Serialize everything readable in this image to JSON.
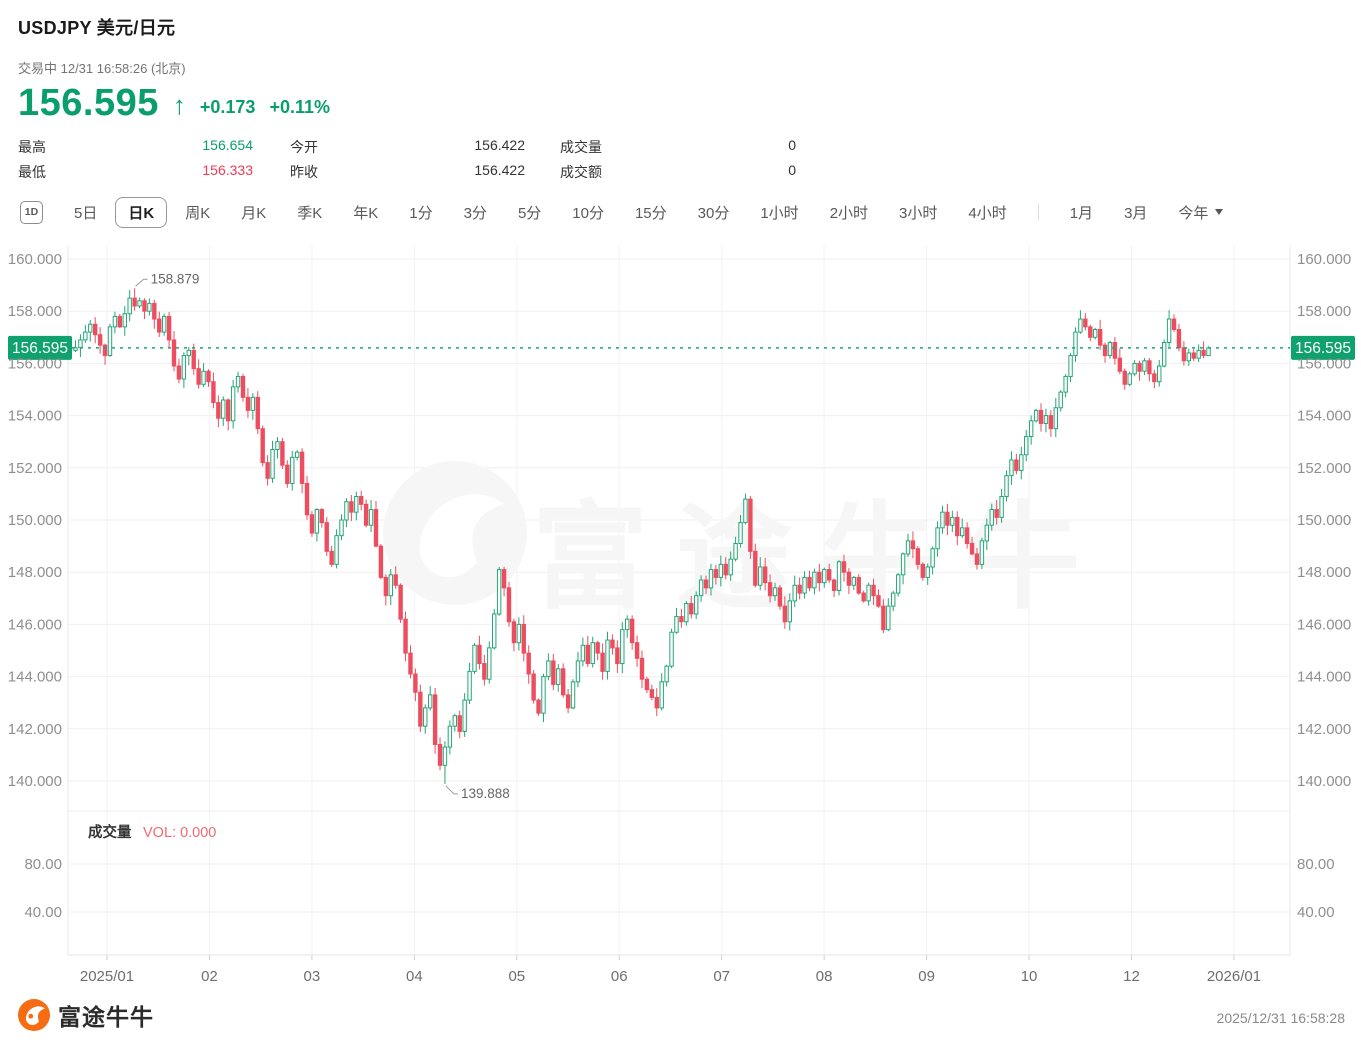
{
  "header": {
    "title": "USDJPY  美元/日元",
    "status": "交易中 12/31 16:58:26 (北京)",
    "price": "156.595",
    "arrow": "↑",
    "change": "+0.173",
    "change_pct": "+0.11%",
    "stats": [
      {
        "label": "最高",
        "value": "156.654",
        "color": "green"
      },
      {
        "label": "今开",
        "value": "156.422",
        "color": "normal"
      },
      {
        "label": "成交量",
        "value": "0",
        "color": "normal"
      },
      {
        "label": "最低",
        "value": "156.333",
        "color": "red"
      },
      {
        "label": "昨收",
        "value": "156.422",
        "color": "normal"
      },
      {
        "label": "成交额",
        "value": "0",
        "color": "normal"
      }
    ]
  },
  "toolbar": {
    "chart_type_icon": "1D",
    "tabs": [
      "5日",
      "日K",
      "周K",
      "月K",
      "季K",
      "年K",
      "1分",
      "3分",
      "5分",
      "10分",
      "15分",
      "30分",
      "1小时",
      "2小时",
      "3小时",
      "4小时"
    ],
    "tabs_right": [
      "1月",
      "3月"
    ],
    "dropdown_label": "今年",
    "selected": "日K"
  },
  "chart_data": {
    "type": "candlestick",
    "symbol": "USDJPY",
    "period": "daily",
    "y_ticks": [
      160,
      158,
      156,
      154,
      152,
      150,
      148,
      146,
      144,
      142,
      140
    ],
    "y_tick_labels": [
      "160.000",
      "158.000",
      "156.000",
      "154.000",
      "152.000",
      "150.000",
      "148.000",
      "146.000",
      "144.000",
      "142.000",
      "140.000"
    ],
    "x_labels": [
      "2025/01",
      "02",
      "03",
      "04",
      "05",
      "06",
      "07",
      "08",
      "09",
      "10",
      "12",
      "2026/01"
    ],
    "current_price": 156.595,
    "current_price_label": "156.595",
    "high_annotation": {
      "label": "158.879",
      "value": 158.879
    },
    "low_annotation": {
      "label": "139.888",
      "value": 139.888
    },
    "high_index": 12,
    "low_index": 75,
    "day_open": 156.422,
    "prev_close": 156.422,
    "day_high": 156.654,
    "day_low": 156.333,
    "closes": [
      156.6,
      156.9,
      157.2,
      157.5,
      157.1,
      156.7,
      156.3,
      157.4,
      157.8,
      157.4,
      157.9,
      158.5,
      158.2,
      158.4,
      158.0,
      158.3,
      157.7,
      157.2,
      157.8,
      156.9,
      155.9,
      155.4,
      156.3,
      156.5,
      155.8,
      155.2,
      155.7,
      155.3,
      154.5,
      153.9,
      154.6,
      153.8,
      155.1,
      155.5,
      154.7,
      154.2,
      154.7,
      153.5,
      152.2,
      151.6,
      152.7,
      153.0,
      152.1,
      151.4,
      152.4,
      152.6,
      151.4,
      150.2,
      149.5,
      150.4,
      149.9,
      148.8,
      148.3,
      149.4,
      150.0,
      150.7,
      150.3,
      150.9,
      150.6,
      149.8,
      150.4,
      149.0,
      147.8,
      147.1,
      147.9,
      147.5,
      146.2,
      144.9,
      144.1,
      143.4,
      142.1,
      142.8,
      143.3,
      141.4,
      140.6,
      141.3,
      142.1,
      142.5,
      141.9,
      143.1,
      144.2,
      145.2,
      144.5,
      143.9,
      145.1,
      146.4,
      148.1,
      147.4,
      146.1,
      145.3,
      146.0,
      144.9,
      144.1,
      143.1,
      142.6,
      144.0,
      144.6,
      143.7,
      144.3,
      143.3,
      142.8,
      143.8,
      144.6,
      145.2,
      144.5,
      145.3,
      144.9,
      144.2,
      145.4,
      145.1,
      144.5,
      145.8,
      146.2,
      145.3,
      144.7,
      143.9,
      143.5,
      143.2,
      142.8,
      143.8,
      144.4,
      145.7,
      146.3,
      146.1,
      146.8,
      146.4,
      147.1,
      147.7,
      147.4,
      148.1,
      147.8,
      148.3,
      147.9,
      148.5,
      149.1,
      149.9,
      150.8,
      148.8,
      147.5,
      148.2,
      147.6,
      147.1,
      147.4,
      146.7,
      146.1,
      146.9,
      147.5,
      147.2,
      147.8,
      147.4,
      148.0,
      147.6,
      148.1,
      147.7,
      147.3,
      148.4,
      148.0,
      147.5,
      147.8,
      147.2,
      146.9,
      147.5,
      147.1,
      146.7,
      145.8,
      146.7,
      147.2,
      147.9,
      148.7,
      149.2,
      148.9,
      148.3,
      147.8,
      148.2,
      148.9,
      149.7,
      150.3,
      149.8,
      150.1,
      149.4,
      149.7,
      149.1,
      148.7,
      148.3,
      149.2,
      149.8,
      150.4,
      150.1,
      150.9,
      151.7,
      152.3,
      151.9,
      152.5,
      153.2,
      153.8,
      154.2,
      153.7,
      154.0,
      153.5,
      154.3,
      154.9,
      155.5,
      156.3,
      157.2,
      157.7,
      157.4,
      157.0,
      157.3,
      156.7,
      156.3,
      156.8,
      156.2,
      155.7,
      155.2,
      155.6,
      156.0,
      155.7,
      156.1,
      155.6,
      155.3,
      155.9,
      156.8,
      157.7,
      157.3,
      156.6,
      156.1,
      156.4,
      156.2,
      156.5,
      156.3,
      156.595
    ]
  },
  "volume_panel": {
    "label": "成交量",
    "vol_text": "VOL: 0.000",
    "y_tick_labels": [
      "80.00",
      "40.00"
    ]
  },
  "watermark": "富途牛牛",
  "footer": {
    "brand": "富途牛牛",
    "timestamp": "2025/12/31 16:58:28"
  },
  "colors": {
    "up": "#23a776",
    "down": "#ee4d5f",
    "price_green": "#0b9e6d",
    "text_red": "#ef3c52",
    "vol_red": "#ef6a72",
    "tag_bg": "#0fa26f",
    "dash_line": "#14a878",
    "grid": "#efefef",
    "axis_text": "#8f8f8f",
    "watermark": "#f6f6f6",
    "brand_orange": "#f66c12"
  }
}
